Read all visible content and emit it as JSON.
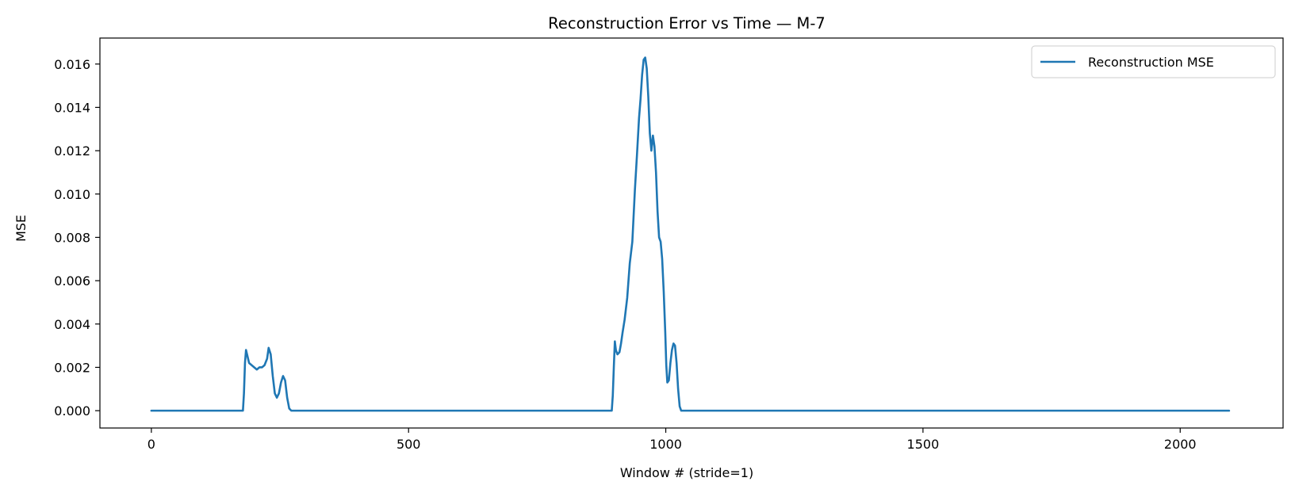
{
  "chart_data": {
    "type": "line",
    "title": "Reconstruction Error vs Time — M-7",
    "xlabel": "Window # (stride=1)",
    "ylabel": "MSE",
    "xlim": [
      -100,
      2200
    ],
    "ylim": [
      -0.0008,
      0.0172
    ],
    "xticks": [
      0,
      500,
      1000,
      1500,
      2000
    ],
    "xtick_labels": [
      "0",
      "500",
      "1000",
      "1500",
      "2000"
    ],
    "yticks": [
      0.0,
      0.002,
      0.004,
      0.006,
      0.008,
      0.01,
      0.012,
      0.014,
      0.016
    ],
    "ytick_labels": [
      "0.000",
      "0.002",
      "0.004",
      "0.006",
      "0.008",
      "0.010",
      "0.012",
      "0.014",
      "0.016"
    ],
    "grid": false,
    "legend": {
      "placement": "top-right"
    },
    "series": [
      {
        "name": "Reconstruction MSE",
        "color": "#1f77b4",
        "x": [
          0,
          178,
          180,
          182,
          184,
          186,
          190,
          195,
          200,
          205,
          210,
          215,
          220,
          225,
          228,
          232,
          236,
          240,
          244,
          248,
          252,
          256,
          260,
          264,
          268,
          272,
          276,
          280,
          2095
        ],
        "y": [
          0.0,
          0.0,
          0.0008,
          0.0022,
          0.0028,
          0.0026,
          0.0022,
          0.0021,
          0.002,
          0.0019,
          0.002,
          0.002,
          0.0021,
          0.0024,
          0.0029,
          0.0026,
          0.0016,
          0.0008,
          0.0006,
          0.0008,
          0.0013,
          0.0016,
          0.0014,
          0.0006,
          0.0001,
          0.0,
          0.0,
          0.0,
          0.0
        ]
      }
    ],
    "series_segment_2": {
      "x": [
        0,
        895,
        897,
        899,
        901,
        903,
        906,
        910,
        913,
        916,
        920,
        925,
        930,
        935,
        940,
        944,
        948,
        951,
        954,
        957,
        960,
        963,
        966,
        969,
        972,
        975,
        978,
        981,
        984,
        987,
        990,
        993,
        996,
        999,
        1001,
        1003,
        1006,
        1009,
        1012,
        1015,
        1018,
        1021,
        1024,
        1027,
        1030,
        1033,
        1036,
        1040,
        2095
      ],
      "y": [
        0,
        0.0,
        0.0007,
        0.002,
        0.0032,
        0.0028,
        0.0026,
        0.0027,
        0.0031,
        0.0036,
        0.0042,
        0.0052,
        0.0068,
        0.0078,
        0.0102,
        0.0118,
        0.0135,
        0.0144,
        0.0155,
        0.0162,
        0.0163,
        0.0158,
        0.0145,
        0.0128,
        0.012,
        0.0127,
        0.0122,
        0.011,
        0.0092,
        0.008,
        0.0078,
        0.007,
        0.0055,
        0.0036,
        0.0021,
        0.0013,
        0.0014,
        0.0022,
        0.0028,
        0.0031,
        0.003,
        0.0022,
        0.001,
        0.0002,
        0.0,
        0.0,
        0.0,
        0.0,
        0.0
      ]
    }
  }
}
